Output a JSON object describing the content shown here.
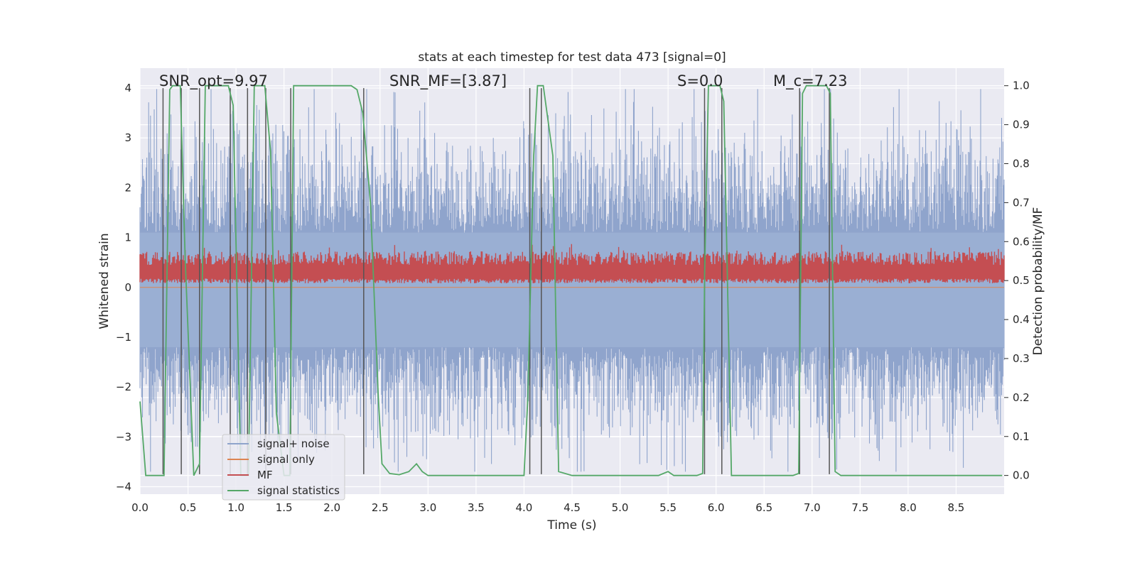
{
  "chart_data": {
    "type": "line",
    "title": "stats at each timestep for test data 473 [signal=0]",
    "xlabel": "Time (s)",
    "ylabel_left": "Whitened strain",
    "ylabel_right": "Detection probability/MF",
    "xlim": [
      0,
      9.0
    ],
    "ylim_left": [
      -4.15,
      4.4
    ],
    "ylim_right": [
      -0.048,
      1.045
    ],
    "x_ticks": [
      "0.0",
      "0.5",
      "1.0",
      "1.5",
      "2.0",
      "2.5",
      "3.0",
      "3.5",
      "4.0",
      "4.5",
      "5.0",
      "5.5",
      "6.0",
      "6.5",
      "7.0",
      "7.5",
      "8.0",
      "8.5"
    ],
    "y_left_ticks": [
      "4",
      "3",
      "2",
      "1",
      "0",
      "−1",
      "−2",
      "−3",
      "−4"
    ],
    "y_right_ticks": [
      "1.0",
      "0.9",
      "0.8",
      "0.7",
      "0.6",
      "0.5",
      "0.4",
      "0.3",
      "0.2",
      "0.1",
      "0.0"
    ],
    "grid": true,
    "legend_position": "lower-left",
    "annotations": [
      {
        "text": "SNR_opt=9.97",
        "x": 0.2
      },
      {
        "text": "SNR_MF=[3.87]",
        "x": 2.6
      },
      {
        "text": "S=0.0",
        "x": 5.6
      },
      {
        "text": "M_c=7.23",
        "x": 6.6
      }
    ],
    "series": [
      {
        "name": "signal+ noise",
        "color": "#8fa4cc",
        "description": "noisy whitened strain, amplitude roughly within [-3.7, 4.0], sampled over 0–9 s"
      },
      {
        "name": "signal only",
        "color": "#dd8452",
        "x": [
          0.0,
          9.0
        ],
        "y": [
          0.0,
          0.0
        ]
      },
      {
        "name": "MF",
        "color": "#c44e52",
        "axis": "right",
        "description": "matched-filter output, values roughly within [0.49, 0.60]"
      },
      {
        "name": "signal statistics",
        "color": "#55a868",
        "axis": "right",
        "x": [
          0.0,
          0.06,
          0.25,
          0.31,
          0.34,
          0.42,
          0.47,
          0.56,
          0.62,
          0.68,
          0.92,
          0.97,
          1.05,
          1.13,
          1.19,
          1.3,
          1.36,
          1.42,
          1.5,
          1.56,
          1.6,
          1.66,
          2.2,
          2.26,
          2.32,
          2.4,
          2.48,
          2.52,
          2.6,
          2.7,
          2.8,
          2.88,
          2.94,
          3.0,
          3.2,
          3.6,
          4.0,
          4.04,
          4.1,
          4.14,
          4.2,
          4.3,
          4.36,
          4.5,
          5.0,
          5.4,
          5.5,
          5.56,
          5.8,
          5.86,
          5.88,
          5.92,
          6.04,
          6.08,
          6.16,
          6.4,
          6.8,
          6.86,
          6.9,
          6.94,
          7.15,
          7.19,
          7.24,
          7.3,
          8.0,
          8.98
        ],
        "y": [
          0.19,
          0.0,
          0.0,
          0.99,
          1.0,
          1.0,
          0.56,
          0.0,
          0.03,
          1.0,
          1.0,
          0.95,
          0.0,
          0.0,
          1.0,
          1.0,
          0.83,
          0.16,
          0.0,
          0.0,
          1.0,
          1.0,
          1.0,
          0.99,
          0.93,
          0.7,
          0.21,
          0.03,
          0.005,
          0.002,
          0.01,
          0.03,
          0.01,
          0.0,
          0.0,
          0.0,
          0.0,
          0.2,
          0.82,
          1.0,
          1.0,
          0.82,
          0.01,
          0.0,
          0.0,
          0.0,
          0.01,
          0.0,
          0.0,
          0.005,
          0.51,
          1.0,
          1.0,
          0.96,
          0.0,
          0.0,
          0.0,
          0.005,
          0.98,
          1.0,
          1.0,
          0.98,
          0.01,
          0.0,
          0.0,
          0.0
        ]
      }
    ],
    "vertical_lines_x": [
      0.24,
      0.43,
      0.62,
      0.94,
      1.12,
      1.31,
      1.57,
      2.33,
      4.06,
      4.18,
      5.88,
      6.06,
      6.87,
      7.18
    ]
  }
}
